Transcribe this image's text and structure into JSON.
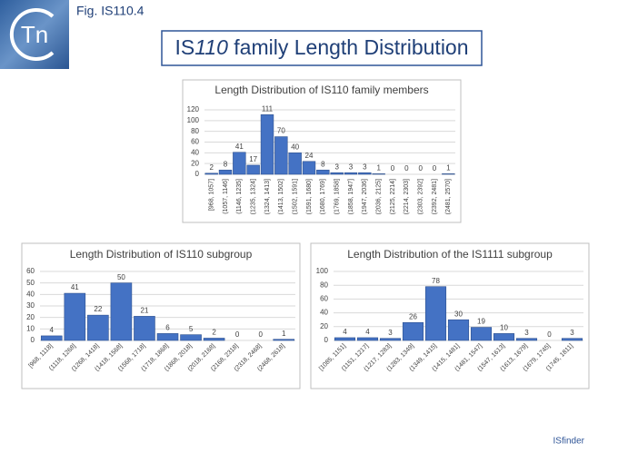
{
  "header": {
    "logo": "Tn",
    "fig": "Fig. IS110.4",
    "title_prefix": "IS",
    "title_italic": "110",
    "title_suffix": " family Length Distribution"
  },
  "footer": "ISfinder",
  "chart_data": [
    {
      "type": "bar",
      "title": "Length Distribution of IS110 family members",
      "categories": [
        "[968, 1057]",
        "(1057, 1146]",
        "(1146, 1235]",
        "(1235, 1324]",
        "(1324, 1413]",
        "(1413, 1502]",
        "(1502, 1591]",
        "(1591, 1680]",
        "(1680, 1769]",
        "(1769, 1858]",
        "(1858, 1947]",
        "(1947, 2036]",
        "(2036, 2125]",
        "(2125, 2214]",
        "(2214, 2303]",
        "(2303, 2392]",
        "(2392, 2481]",
        "(2481, 2570]"
      ],
      "values": [
        2,
        8,
        41,
        17,
        111,
        70,
        40,
        24,
        8,
        3,
        3,
        3,
        1,
        0,
        0,
        0,
        0,
        1
      ],
      "color": "#4472c4",
      "ylim": [
        0,
        120
      ],
      "yticks": [
        0,
        20,
        40,
        60,
        80,
        100,
        120
      ],
      "grid": true
    },
    {
      "type": "bar",
      "title": "Length Distribution of IS110 subgroup",
      "categories": [
        "[968, 1118]",
        "(1118, 1268]",
        "(1268, 1418]",
        "(1418, 1568]",
        "(1568, 1718]",
        "(1718, 1868]",
        "(1868, 2018]",
        "(2018, 2168]",
        "(2168, 2318]",
        "(2318, 2468]",
        "(2468, 2618]"
      ],
      "values": [
        4,
        41,
        22,
        50,
        21,
        6,
        5,
        2,
        0,
        0,
        1
      ],
      "color": "#4472c4",
      "ylim": [
        0,
        60
      ],
      "yticks": [
        0,
        10,
        20,
        30,
        40,
        50,
        60
      ],
      "grid": true
    },
    {
      "type": "bar",
      "title": "Length Distribution of the IS1111 subgroup",
      "categories": [
        "[1085, 1151]",
        "(1151, 1217]",
        "(1217, 1283]",
        "(1283, 1349]",
        "(1349, 1415]",
        "(1415, 1481]",
        "(1481, 1547]",
        "(1547, 1613]",
        "(1613, 1679]",
        "(1679, 1745]",
        "(1745, 1811]"
      ],
      "values": [
        4,
        4,
        3,
        26,
        78,
        30,
        19,
        10,
        3,
        0,
        3
      ],
      "color": "#4472c4",
      "ylim": [
        0,
        100
      ],
      "yticks": [
        0,
        20,
        40,
        60,
        80,
        100
      ],
      "grid": true
    }
  ]
}
